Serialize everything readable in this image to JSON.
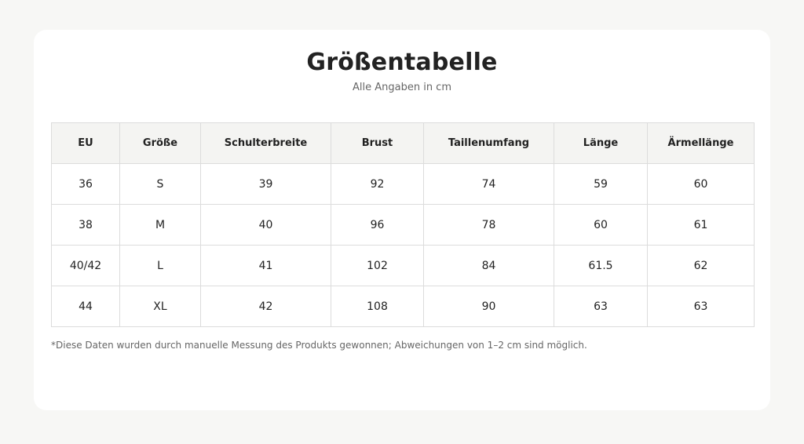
{
  "page": {
    "title": "Größentabelle",
    "subtitle": "Alle Angaben in cm",
    "footnote": "*Diese Daten wurden durch manuelle Messung des Produkts gewonnen; Abweichungen von 1–2 cm sind möglich."
  },
  "table": {
    "headers": [
      "EU",
      "Größe",
      "Schulterbreite",
      "Brust",
      "Taillenumfang",
      "Länge",
      "Ärmellänge"
    ],
    "rows": [
      [
        "36",
        "S",
        "39",
        "92",
        "74",
        "59",
        "60"
      ],
      [
        "38",
        "M",
        "40",
        "96",
        "78",
        "60",
        "61"
      ],
      [
        "40/42",
        "L",
        "41",
        "102",
        "84",
        "61.5",
        "62"
      ],
      [
        "44",
        "XL",
        "42",
        "108",
        "90",
        "63",
        "63"
      ]
    ]
  }
}
